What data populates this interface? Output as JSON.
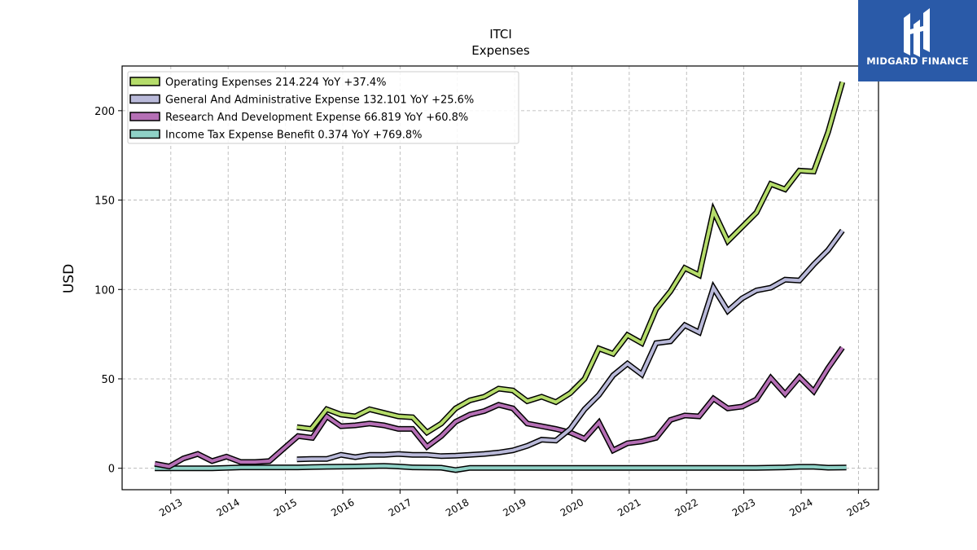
{
  "chart_data": {
    "type": "line",
    "title": "ITCI",
    "subtitle": "Expenses",
    "ylabel": "USD",
    "xlabel": "",
    "xlim": [
      2012.15,
      2025.35
    ],
    "ylim": [
      -12,
      225
    ],
    "yticks": [
      0,
      50,
      100,
      150,
      200
    ],
    "xticks": [
      2013,
      2014,
      2015,
      2016,
      2017,
      2018,
      2019,
      2020,
      2021,
      2022,
      2023,
      2024,
      2025
    ],
    "grid": true,
    "legend_position": "top-left",
    "series": [
      {
        "name": "Operating Expenses",
        "legend": "Operating Expenses  214.224 YoY +37.4%",
        "color": "#b5dc6a",
        "points": [
          [
            2015.2,
            23
          ],
          [
            2015.45,
            22
          ],
          [
            2015.72,
            33
          ],
          [
            2015.97,
            30
          ],
          [
            2016.22,
            29
          ],
          [
            2016.47,
            33
          ],
          [
            2016.72,
            31
          ],
          [
            2016.97,
            29
          ],
          [
            2017.22,
            28.5
          ],
          [
            2017.47,
            20
          ],
          [
            2017.72,
            25
          ],
          [
            2017.97,
            33.5
          ],
          [
            2018.22,
            38
          ],
          [
            2018.47,
            40
          ],
          [
            2018.72,
            44.5
          ],
          [
            2018.97,
            43.5
          ],
          [
            2019.22,
            37.5
          ],
          [
            2019.47,
            40
          ],
          [
            2019.72,
            37
          ],
          [
            2019.97,
            42
          ],
          [
            2020.22,
            50
          ],
          [
            2020.47,
            67
          ],
          [
            2020.72,
            64
          ],
          [
            2020.97,
            74.5
          ],
          [
            2021.22,
            70
          ],
          [
            2021.47,
            89
          ],
          [
            2021.72,
            99
          ],
          [
            2021.97,
            112
          ],
          [
            2022.22,
            108
          ],
          [
            2022.47,
            144
          ],
          [
            2022.72,
            127
          ],
          [
            2022.97,
            135
          ],
          [
            2023.22,
            143
          ],
          [
            2023.47,
            159
          ],
          [
            2023.72,
            156
          ],
          [
            2023.97,
            166.5
          ],
          [
            2024.22,
            166
          ],
          [
            2024.47,
            188
          ],
          [
            2024.72,
            216
          ]
        ]
      },
      {
        "name": "General And Administrative Expense",
        "legend": "General And Administrative Expense  132.101 YoY +25.6%",
        "color": "#b9b9d9",
        "points": [
          [
            2015.2,
            5
          ],
          [
            2015.45,
            5.2
          ],
          [
            2015.72,
            5.2
          ],
          [
            2015.97,
            7.5
          ],
          [
            2016.22,
            6.2
          ],
          [
            2016.47,
            7.5
          ],
          [
            2016.72,
            7.5
          ],
          [
            2016.97,
            8
          ],
          [
            2017.22,
            7.5
          ],
          [
            2017.47,
            7.5
          ],
          [
            2017.72,
            6.8
          ],
          [
            2017.97,
            7
          ],
          [
            2018.22,
            7.5
          ],
          [
            2018.47,
            8
          ],
          [
            2018.72,
            8.8
          ],
          [
            2018.97,
            10
          ],
          [
            2019.22,
            12.5
          ],
          [
            2019.47,
            16
          ],
          [
            2019.72,
            15.5
          ],
          [
            2019.97,
            22
          ],
          [
            2020.22,
            33
          ],
          [
            2020.47,
            41
          ],
          [
            2020.72,
            52
          ],
          [
            2020.97,
            58.5
          ],
          [
            2021.22,
            52.5
          ],
          [
            2021.47,
            70
          ],
          [
            2021.72,
            71
          ],
          [
            2021.97,
            80
          ],
          [
            2022.22,
            76
          ],
          [
            2022.47,
            101
          ],
          [
            2022.72,
            88
          ],
          [
            2022.97,
            95
          ],
          [
            2023.22,
            99.5
          ],
          [
            2023.47,
            101
          ],
          [
            2023.72,
            105.5
          ],
          [
            2023.97,
            105
          ],
          [
            2024.22,
            114
          ],
          [
            2024.47,
            122
          ],
          [
            2024.72,
            133
          ]
        ]
      },
      {
        "name": "Research And Development Expense",
        "legend": "Research And Development Expense  66.819 YoY +60.8%",
        "color": "#b56fb5",
        "points": [
          [
            2012.72,
            2.5
          ],
          [
            2012.97,
            1
          ],
          [
            2013.22,
            5.5
          ],
          [
            2013.47,
            8
          ],
          [
            2013.72,
            4
          ],
          [
            2013.97,
            6.5
          ],
          [
            2014.22,
            3.5
          ],
          [
            2014.47,
            3.5
          ],
          [
            2014.72,
            4
          ],
          [
            2014.97,
            11
          ],
          [
            2015.22,
            18
          ],
          [
            2015.47,
            17
          ],
          [
            2015.72,
            29
          ],
          [
            2015.97,
            23.5
          ],
          [
            2016.22,
            24
          ],
          [
            2016.47,
            25
          ],
          [
            2016.72,
            24
          ],
          [
            2016.97,
            22
          ],
          [
            2017.22,
            22
          ],
          [
            2017.47,
            12
          ],
          [
            2017.72,
            18
          ],
          [
            2017.97,
            26
          ],
          [
            2018.22,
            30
          ],
          [
            2018.47,
            32
          ],
          [
            2018.72,
            35.5
          ],
          [
            2018.97,
            33.5
          ],
          [
            2019.22,
            25
          ],
          [
            2019.47,
            23.5
          ],
          [
            2019.72,
            22
          ],
          [
            2019.97,
            20
          ],
          [
            2020.22,
            16.5
          ],
          [
            2020.47,
            25.5
          ],
          [
            2020.72,
            10
          ],
          [
            2020.97,
            14
          ],
          [
            2021.22,
            15
          ],
          [
            2021.47,
            17
          ],
          [
            2021.72,
            27
          ],
          [
            2021.97,
            29.5
          ],
          [
            2022.22,
            29
          ],
          [
            2022.47,
            39
          ],
          [
            2022.72,
            33.5
          ],
          [
            2022.97,
            34.5
          ],
          [
            2023.22,
            38.5
          ],
          [
            2023.47,
            50.5
          ],
          [
            2023.72,
            41.5
          ],
          [
            2023.97,
            51
          ],
          [
            2024.22,
            43
          ],
          [
            2024.47,
            56
          ],
          [
            2024.72,
            67.5
          ]
        ]
      },
      {
        "name": "Income Tax Expense Benefit",
        "legend": "Income Tax Expense Benefit  0.374 YoY +769.8%",
        "color": "#8fd1c6",
        "points": [
          [
            2012.72,
            0
          ],
          [
            2013.22,
            0
          ],
          [
            2013.72,
            0
          ],
          [
            2014.22,
            0.5
          ],
          [
            2014.72,
            0.5
          ],
          [
            2015.22,
            0.5
          ],
          [
            2015.72,
            0.8
          ],
          [
            2016.22,
            1
          ],
          [
            2016.72,
            1.3
          ],
          [
            2016.97,
            1
          ],
          [
            2017.22,
            0.5
          ],
          [
            2017.72,
            0.3
          ],
          [
            2017.97,
            -1
          ],
          [
            2018.22,
            0.2
          ],
          [
            2018.72,
            0.2
          ],
          [
            2019.22,
            0.2
          ],
          [
            2019.72,
            0.2
          ],
          [
            2020.22,
            0.2
          ],
          [
            2020.72,
            0.2
          ],
          [
            2021.22,
            0.2
          ],
          [
            2021.72,
            0.2
          ],
          [
            2022.22,
            0.2
          ],
          [
            2022.72,
            0.2
          ],
          [
            2023.22,
            0.2
          ],
          [
            2023.72,
            0.5
          ],
          [
            2023.97,
            0.8
          ],
          [
            2024.22,
            0.8
          ],
          [
            2024.47,
            0.3
          ],
          [
            2024.79,
            0.4
          ]
        ]
      }
    ]
  },
  "branding": {
    "logo_text": "MIDGARD FINANCE",
    "logo_bg": "#2a5aa8",
    "icon": "midgard-logo-icon"
  }
}
